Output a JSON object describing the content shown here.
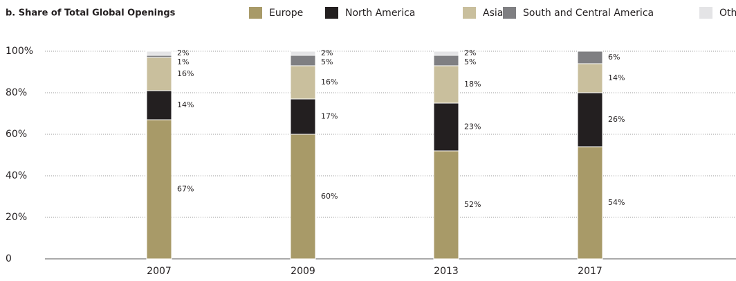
{
  "chart_data": {
    "type": "stacked_bar",
    "title": "b. Share of Total Global Openings",
    "categories": [
      "2007",
      "2009",
      "2013",
      "2017"
    ],
    "series": [
      {
        "name": "Europe",
        "color": "#a89a68",
        "values": [
          67,
          60,
          52,
          54
        ],
        "value_labels": [
          "67%",
          "60%",
          "52%",
          "54%"
        ]
      },
      {
        "name": "North America",
        "color": "#231f20",
        "values": [
          14,
          17,
          23,
          26
        ],
        "value_labels": [
          "14%",
          "17%",
          "23%",
          "26%"
        ]
      },
      {
        "name": "Asia",
        "color": "#c9bf9d",
        "values": [
          16,
          16,
          18,
          14
        ],
        "value_labels": [
          "16%",
          "16%",
          "18%",
          "14%"
        ]
      },
      {
        "name": "South and Central America",
        "color": "#7f7f82",
        "values": [
          1,
          5,
          5,
          6
        ],
        "value_labels": [
          "1%",
          "5%",
          "5%",
          "6%"
        ]
      },
      {
        "name": "Other",
        "color": "#e4e4e6",
        "values": [
          2,
          2,
          2,
          null
        ],
        "value_labels": [
          "2%",
          "2%",
          "2%",
          null
        ]
      }
    ],
    "ylim": [
      0,
      100
    ],
    "yticks": [
      0,
      {
        "value": 20,
        "label": "20%"
      },
      {
        "value": 40,
        "label": "40%"
      },
      {
        "value": 60,
        "label": "60%"
      },
      {
        "value": 80,
        "label": "80%"
      },
      {
        "value": 100,
        "label": "100%"
      }
    ],
    "grid": true,
    "legend": "top"
  }
}
